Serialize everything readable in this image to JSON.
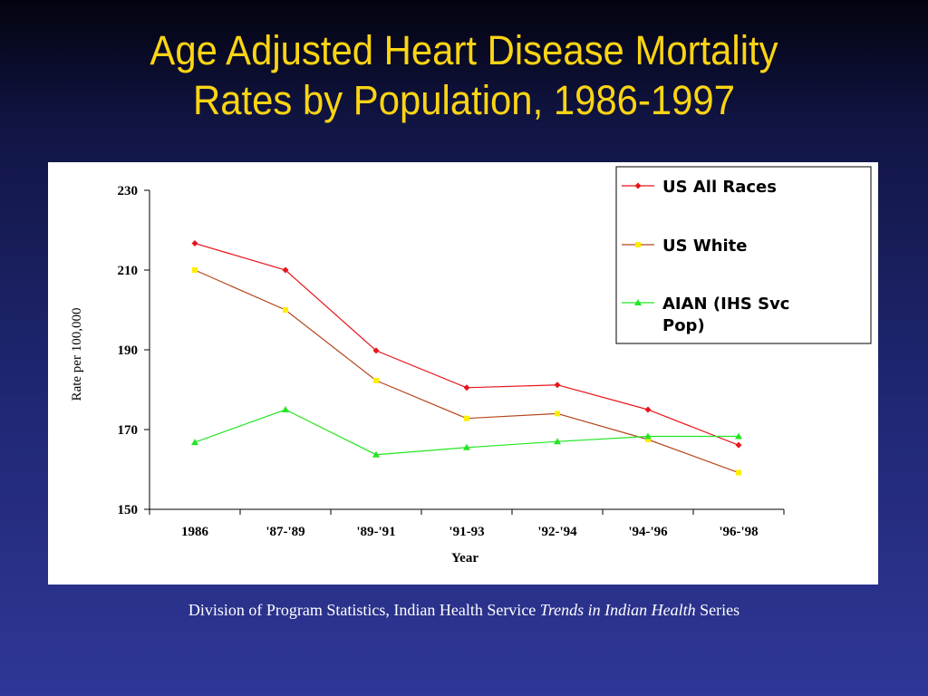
{
  "slide": {
    "title_line1": "Age Adjusted Heart Disease Mortality",
    "title_line2": "Rates by Population, 1986-1997",
    "footer_prefix": "Division of Program Statistics, Indian Health Service ",
    "footer_italic": "Trends in Indian Health",
    "footer_suffix": " Series"
  },
  "chart_data": {
    "type": "line",
    "title": "Age Adjusted Heart Disease Mortality Rates by Population, 1986-1997",
    "xlabel": "Year",
    "ylabel": "Rate per 100,000",
    "ylim": [
      150,
      230
    ],
    "yticks": [
      150,
      170,
      190,
      210,
      230
    ],
    "categories": [
      "1986",
      "'87-'89",
      "'89-'91",
      "'91-93",
      "'92-'94",
      "'94-'96",
      "'96-'98"
    ],
    "grid": false,
    "legend_position": "top-right",
    "series": [
      {
        "name": "US All Races",
        "color": "#e8151b",
        "marker": "diamond",
        "values": [
          216.7,
          210,
          189.8,
          180.5,
          181.2,
          175,
          166.1
        ]
      },
      {
        "name": "US White",
        "color": "#b5471c",
        "marker_color": "#ffee00",
        "marker": "square",
        "values": [
          210,
          200,
          182.3,
          172.8,
          174,
          167.5,
          159.2
        ]
      },
      {
        "name": "AIAN (IHS Svc Pop)",
        "color": "#22e622",
        "marker": "triangle",
        "values": [
          166.8,
          175,
          163.7,
          165.5,
          167,
          168.3,
          168.3
        ]
      }
    ]
  }
}
